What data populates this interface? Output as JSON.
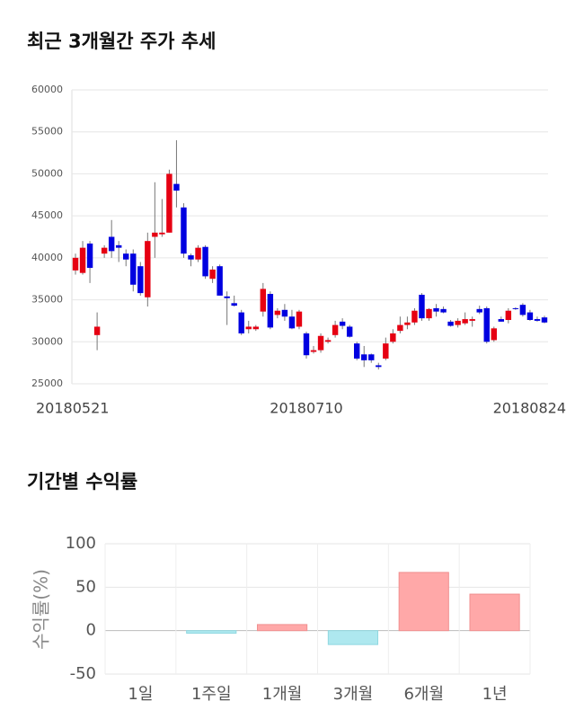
{
  "chart_data": [
    {
      "type": "candlestick",
      "title": "최근 3개월간 주가 추세",
      "categories": [
        "20180521",
        null,
        null,
        null,
        null,
        null,
        null,
        null,
        null,
        null,
        null,
        null,
        null,
        null,
        null,
        null,
        null,
        null,
        null,
        null,
        null,
        null,
        null,
        null,
        null,
        null,
        null,
        null,
        null,
        null,
        null,
        null,
        "20180710",
        null,
        null,
        null,
        null,
        null,
        null,
        null,
        null,
        null,
        null,
        null,
        null,
        null,
        null,
        null,
        null,
        null,
        null,
        null,
        null,
        null,
        null,
        null,
        null,
        null,
        null,
        null,
        null,
        null,
        null,
        null,
        null,
        "20180824"
      ],
      "open": [
        38500,
        38200,
        41700,
        30800,
        40500,
        42500,
        41500,
        40500,
        40500,
        39000,
        35300,
        42500,
        42800,
        43000,
        48800,
        46000,
        40300,
        39800,
        41300,
        37500,
        39000,
        35400,
        34600,
        33500,
        31500,
        31500,
        33600,
        35700,
        33200,
        33800,
        33000,
        31800,
        31000,
        28800,
        29000,
        30000,
        30800,
        32400,
        31800,
        29800,
        28500,
        28500,
        27200,
        28000,
        30000,
        31300,
        32000,
        32300,
        35600,
        32800,
        34000,
        33900,
        32400,
        32000,
        32200,
        32500,
        33900,
        34000,
        30200,
        32700,
        32600,
        34000,
        34400,
        33500,
        32700,
        32900
      ],
      "high": [
        40500,
        42000,
        42000,
        33500,
        41500,
        44500,
        42000,
        41000,
        41000,
        39500,
        43000,
        49000,
        47000,
        50500,
        54000,
        46500,
        40500,
        41500,
        41500,
        39000,
        39200,
        36000,
        35500,
        33800,
        32500,
        32000,
        37000,
        36000,
        34000,
        34500,
        33800,
        33800,
        31200,
        29500,
        31000,
        30500,
        32500,
        32800,
        32000,
        30000,
        29500,
        28600,
        27500,
        30500,
        31500,
        33000,
        33000,
        34000,
        35800,
        34000,
        34500,
        34200,
        32600,
        32800,
        33500,
        33000,
        34300,
        34200,
        31800,
        33000,
        34000,
        34100,
        34600,
        33800,
        33000,
        33100
      ],
      "low": [
        38000,
        38000,
        37000,
        29000,
        40000,
        40000,
        39500,
        39000,
        36000,
        35500,
        34200,
        40000,
        42500,
        43000,
        46000,
        40000,
        39000,
        39500,
        37500,
        37000,
        35500,
        32000,
        34200,
        30800,
        31000,
        31300,
        33000,
        31500,
        32800,
        32500,
        31500,
        31500,
        28000,
        28600,
        28700,
        29800,
        30500,
        31500,
        30500,
        27800,
        27000,
        27500,
        26700,
        27800,
        29800,
        31000,
        31500,
        32000,
        32500,
        32500,
        33000,
        33400,
        31800,
        31700,
        32000,
        31800,
        33300,
        29800,
        30000,
        32400,
        32200,
        33800,
        33000,
        32500,
        32400,
        32200
      ],
      "close": [
        40000,
        41200,
        38800,
        31800,
        41200,
        40800,
        41200,
        39800,
        36800,
        35800,
        42000,
        43000,
        43000,
        50000,
        48000,
        40500,
        39800,
        41200,
        37800,
        38600,
        35500,
        35200,
        34300,
        31000,
        31800,
        31800,
        36300,
        31700,
        33700,
        33000,
        31600,
        33600,
        28400,
        29000,
        30700,
        30200,
        32000,
        31900,
        30600,
        28000,
        27800,
        27800,
        27000,
        29800,
        31000,
        32000,
        32300,
        33700,
        32800,
        33900,
        33600,
        33500,
        31900,
        32500,
        32700,
        32700,
        33500,
        30000,
        31600,
        32400,
        33700,
        33900,
        33200,
        32600,
        32500,
        32300
      ],
      "up_color": "#e60012",
      "down_color": "#0000e0",
      "ylim": [
        25000,
        60000
      ],
      "yticks": [
        25000,
        30000,
        35000,
        40000,
        45000,
        50000,
        55000,
        60000
      ],
      "grid": true
    },
    {
      "type": "bar",
      "title": "기간별 수익률",
      "ylabel": "수익률(%)",
      "categories": [
        "1일",
        "1주일",
        "1개월",
        "3개월",
        "6개월",
        "1년"
      ],
      "values": [
        0,
        -3,
        7,
        -16,
        67,
        42
      ],
      "positive_color": "#ffa8a8",
      "negative_color": "#aee8ef",
      "ylim": [
        -50,
        100
      ],
      "yticks": [
        -50,
        0,
        50,
        100
      ],
      "grid": true
    }
  ]
}
